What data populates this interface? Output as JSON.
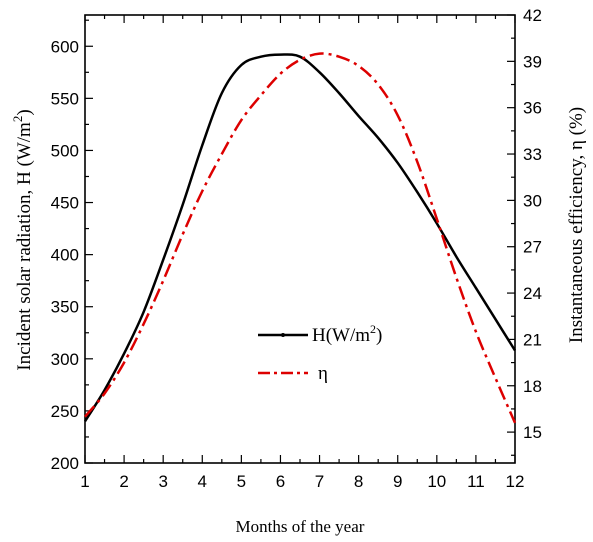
{
  "chart_data": {
    "type": "line",
    "xlabel": "Months of the year",
    "ylabel_left_base": "Incident solar radiation, H (W/m",
    "ylabel_left_sup": "2",
    "ylabel_left_end": ")",
    "ylabel_right": "Instantaneous efficiency, η (%)",
    "x_ticks": [
      "1",
      "2",
      "3",
      "4",
      "5",
      "6",
      "7",
      "8",
      "9",
      "10",
      "11",
      "12"
    ],
    "y_left_ticks": [
      "200",
      "250",
      "300",
      "350",
      "400",
      "450",
      "500",
      "550",
      "600"
    ],
    "y_right_ticks": [
      "15",
      "18",
      "21",
      "24",
      "27",
      "30",
      "33",
      "36",
      "39",
      "42"
    ],
    "xlim": [
      1,
      12
    ],
    "ylim_left": [
      200,
      630
    ],
    "ylim_right": [
      13,
      42
    ],
    "series": [
      {
        "name_base": "H(W/m",
        "name_sup": "2",
        "name_end": ")",
        "axis": "left",
        "color": "#000000",
        "style": "solid",
        "x": [
          1,
          1.5,
          2,
          2.5,
          3,
          3.5,
          4,
          4.5,
          5,
          5.5,
          6,
          6.5,
          7,
          7.5,
          8,
          8.5,
          9,
          9.5,
          10,
          10.5,
          11,
          11.5,
          12
        ],
        "values": [
          240,
          270,
          305,
          345,
          395,
          448,
          505,
          555,
          582,
          590,
          592,
          590,
          575,
          555,
          533,
          512,
          488,
          460,
          430,
          398,
          368,
          338,
          308
        ]
      },
      {
        "name": "η",
        "axis": "right",
        "color": "#dd0000",
        "style": "dashdot",
        "x": [
          1,
          1.5,
          2,
          2.5,
          3,
          3.5,
          4,
          4.5,
          5,
          5.5,
          6,
          6.5,
          7,
          7.5,
          8,
          8.5,
          9,
          9.5,
          10,
          10.5,
          11,
          11.5,
          12
        ],
        "values": [
          16.0,
          17.5,
          19.5,
          22.0,
          24.8,
          27.8,
          30.6,
          33.0,
          35.2,
          36.8,
          38.2,
          39.1,
          39.5,
          39.3,
          38.7,
          37.5,
          35.5,
          32.5,
          28.8,
          25.0,
          21.5,
          18.5,
          15.6
        ]
      }
    ]
  }
}
